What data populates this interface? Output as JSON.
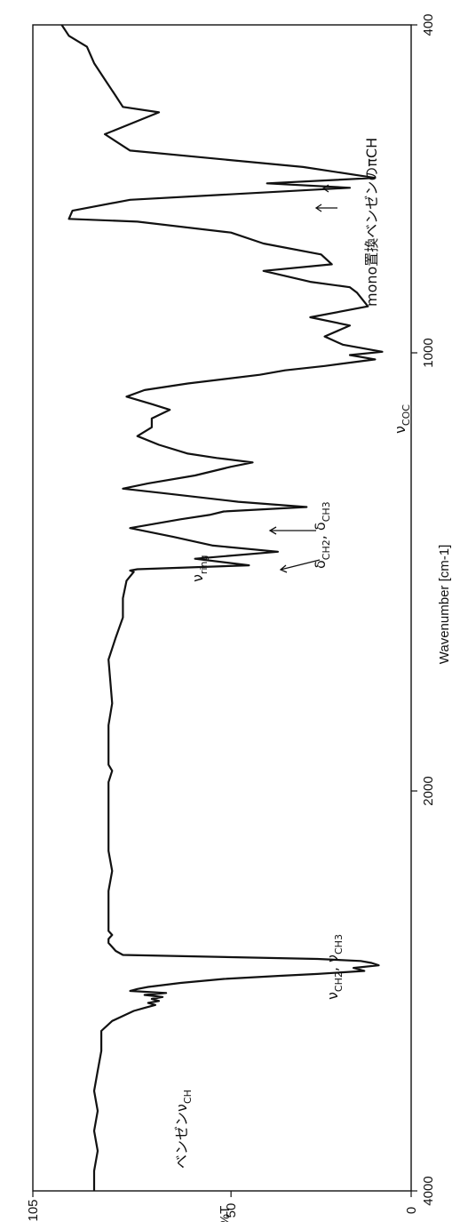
{
  "chart_data": {
    "type": "line",
    "xlabel": "Wavenumber [cm-1]",
    "ylabel": "%T",
    "xlim": [
      4000,
      400
    ],
    "ylim": [
      0,
      105
    ],
    "x_ticks": [
      4000,
      2000,
      1000,
      400
    ],
    "y_ticks": [
      0,
      50,
      105
    ],
    "series": [
      {
        "x": [
          4000,
          3900,
          3800,
          3700,
          3600,
          3500,
          3400,
          3300,
          3200,
          3150,
          3100,
          3085,
          3070,
          3060,
          3050,
          3040,
          3030,
          3020,
          3010,
          3000,
          2990,
          2980,
          2960,
          2940,
          2925,
          2915,
          2900,
          2885,
          2872,
          2860,
          2850,
          2840,
          2820,
          2800,
          2780,
          2760,
          2740,
          2720,
          2700,
          2600,
          2500,
          2400,
          2300,
          2200,
          2100,
          2000,
          1980,
          1954,
          1940,
          1900,
          1850,
          1800,
          1700,
          1650,
          1604,
          1585,
          1560,
          1520,
          1500,
          1497,
          1494,
          1485,
          1470,
          1454,
          1440,
          1420,
          1400,
          1380,
          1370,
          1362,
          1352,
          1340,
          1320,
          1310,
          1298,
          1280,
          1260,
          1250,
          1240,
          1230,
          1210,
          1190,
          1170,
          1150,
          1130,
          1117,
          1100,
          1085,
          1070,
          1050,
          1040,
          1030,
          1015,
          1005,
          998,
          985,
          970,
          950,
          935,
          915,
          890,
          880,
          870,
          850,
          838,
          820,
          800,
          780,
          760,
          755,
          740,
          720,
          698,
          690,
          680,
          660,
          630,
          600,
          560,
          550,
          530,
          500,
          470,
          440,
          420,
          400
        ],
        "y": [
          88,
          88,
          87,
          88,
          87,
          88,
          87,
          86,
          86,
          83,
          77,
          74,
          71,
          73,
          70,
          72,
          69,
          74,
          68,
          78,
          76,
          73,
          64,
          52,
          37,
          26,
          13,
          16,
          9,
          11,
          14,
          26,
          80,
          82,
          83,
          84,
          84,
          83,
          84,
          84,
          84,
          83,
          84,
          84,
          84,
          84,
          84,
          83,
          84,
          84,
          84,
          83,
          84,
          82,
          80,
          80,
          80,
          79,
          77,
          78,
          76,
          45,
          60,
          37,
          55,
          66,
          78,
          64,
          56,
          52,
          29,
          48,
          69,
          80,
          73,
          60,
          50,
          44,
          54,
          62,
          70,
          76,
          72,
          72,
          67,
          72,
          79,
          74,
          62,
          42,
          35,
          24,
          10,
          17,
          8,
          19,
          24,
          17,
          28,
          12,
          15,
          17,
          28,
          41,
          22,
          25,
          41,
          50,
          76,
          95,
          94,
          78,
          17,
          40,
          10,
          30,
          78,
          85,
          70,
          80,
          82,
          85,
          88,
          90,
          95,
          97
        ],
        "color": "#111111"
      }
    ],
    "annotations": [
      {
        "base": "ベンゼンν",
        "sub": "CH"
      },
      {
        "base": "ν",
        "sub": "CH2",
        "sep": ", ",
        "base2": "ν",
        "sub2": "CH3"
      },
      {
        "base": "ν",
        "sub": "ring"
      },
      {
        "base": "δ",
        "sub": "CH2",
        "sep": ", ",
        "base2": "δ",
        "sub2": "CH3"
      },
      {
        "base": "ν",
        "sub": "COC"
      },
      {
        "base": "mono置換ベンゼンのπCH"
      }
    ]
  }
}
